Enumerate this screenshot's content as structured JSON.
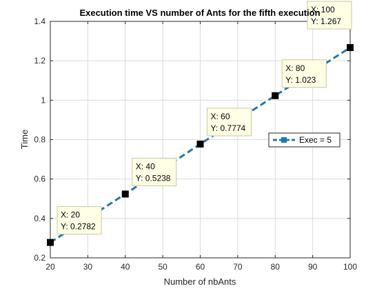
{
  "chart_data": {
    "type": "line",
    "title": "Execution time VS number of Ants for the fifth execution",
    "xlabel": "Number of nbAnts",
    "ylabel": "Time",
    "xlim": [
      20,
      100
    ],
    "ylim": [
      0.2,
      1.4
    ],
    "xticks": [
      20,
      30,
      40,
      50,
      60,
      70,
      80,
      90,
      100
    ],
    "yticks": [
      0.2,
      0.4,
      0.6,
      0.8,
      1.0,
      1.2,
      1.4
    ],
    "xtick_labels": [
      "20",
      "30",
      "40",
      "50",
      "60",
      "70",
      "80",
      "90",
      "100"
    ],
    "ytick_labels": [
      "0.2",
      "0.4",
      "0.6",
      "0.8",
      "1",
      "1.2",
      "1.4"
    ],
    "grid": true,
    "legend_position": "right",
    "series": [
      {
        "name": "Exec = 5",
        "color": "#1f77b4",
        "line_style": "dashed",
        "marker": "square",
        "x": [
          20,
          40,
          60,
          80,
          100
        ],
        "y": [
          0.2782,
          0.5238,
          0.7774,
          1.023,
          1.267
        ]
      }
    ],
    "datatips": [
      {
        "x_text": "X: 20",
        "y_text": "Y: 0.2782"
      },
      {
        "x_text": "X: 40",
        "y_text": "Y: 0.5238"
      },
      {
        "x_text": "X: 60",
        "y_text": "Y: 0.7774"
      },
      {
        "x_text": "X: 80",
        "y_text": "Y: 1.023"
      },
      {
        "x_text": "X: 100",
        "y_text": "Y: 1.267"
      }
    ]
  }
}
